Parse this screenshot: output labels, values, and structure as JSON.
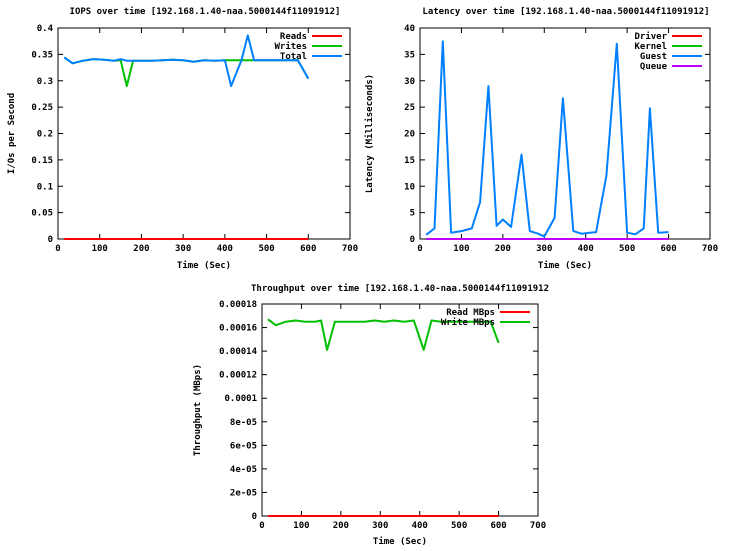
{
  "chart_data": [
    {
      "type": "line",
      "title": "IOPS over time [192.168.1.40-naa.5000144f11091912]",
      "xlabel": "Time (Sec)",
      "ylabel": "I/Os per Second",
      "xlim": [
        0,
        700
      ],
      "ylim": [
        0,
        0.4
      ],
      "xticks": [
        0,
        100,
        200,
        300,
        400,
        500,
        600,
        700
      ],
      "xtick_labels": [
        "0",
        "100",
        "200",
        "300",
        "400",
        "500",
        "600",
        "700"
      ],
      "yticks": [
        0,
        0.05,
        0.1,
        0.15,
        0.2,
        0.25,
        0.3,
        0.35,
        0.4
      ],
      "ytick_labels": [
        "0",
        "0.05",
        "0.1",
        "0.15",
        "0.2",
        "0.25",
        "0.3",
        "0.35",
        "0.4"
      ],
      "legend_position": "top-right",
      "grid": false,
      "series": [
        {
          "name": "Reads",
          "color": "#ff0000",
          "x": [
            15,
            600
          ],
          "y": [
            0,
            0
          ]
        },
        {
          "name": "Writes",
          "color": "#00c000",
          "x": [
            15,
            35,
            60,
            85,
            110,
            135,
            150,
            165,
            180,
            200,
            225,
            250,
            275,
            300,
            325,
            350,
            375,
            400,
            415,
            440,
            455,
            470,
            500,
            525,
            550,
            575,
            600
          ],
          "y": [
            0.344,
            0.333,
            0.338,
            0.341,
            0.34,
            0.338,
            0.339,
            0.29,
            0.338,
            0.338,
            0.338,
            0.339,
            0.34,
            0.339,
            0.336,
            0.339,
            0.338,
            0.339,
            0.339,
            0.339,
            0.339,
            0.339,
            0.339,
            0.339,
            0.339,
            0.339,
            0.304
          ]
        },
        {
          "name": "Total",
          "color": "#0080ff",
          "x": [
            15,
            35,
            60,
            85,
            110,
            135,
            150,
            165,
            180,
            200,
            225,
            250,
            275,
            300,
            325,
            350,
            375,
            400,
            415,
            440,
            455,
            470,
            500,
            525,
            550,
            575,
            600
          ],
          "y": [
            0.344,
            0.333,
            0.338,
            0.341,
            0.34,
            0.338,
            0.341,
            0.338,
            0.338,
            0.338,
            0.338,
            0.339,
            0.34,
            0.339,
            0.336,
            0.339,
            0.338,
            0.339,
            0.29,
            0.339,
            0.386,
            0.339,
            0.339,
            0.339,
            0.339,
            0.339,
            0.304
          ]
        }
      ]
    },
    {
      "type": "line",
      "title": "Latency over time [192.168.1.40-naa.5000144f11091912]",
      "xlabel": "Time (Sec)",
      "ylabel": "Latency (Milliseconds)",
      "xlim": [
        0,
        700
      ],
      "ylim": [
        0,
        40
      ],
      "xticks": [
        0,
        100,
        200,
        300,
        400,
        500,
        600,
        700
      ],
      "xtick_labels": [
        "0",
        "100",
        "200",
        "300",
        "400",
        "500",
        "600",
        "700"
      ],
      "yticks": [
        0,
        5,
        10,
        15,
        20,
        25,
        30,
        35,
        40
      ],
      "ytick_labels": [
        "0",
        "5",
        "10",
        "15",
        "20",
        "25",
        "30",
        "35",
        "40"
      ],
      "legend_position": "top-right",
      "grid": false,
      "series": [
        {
          "name": "Driver",
          "color": "#ff0000",
          "x": [
            15,
            600
          ],
          "y": [
            0,
            0
          ]
        },
        {
          "name": "Kernel",
          "color": "#00c000",
          "x": [
            15,
            600
          ],
          "y": [
            0,
            0
          ]
        },
        {
          "name": "Guest",
          "color": "#0080ff",
          "x": [
            15,
            35,
            55,
            75,
            100,
            125,
            145,
            165,
            185,
            200,
            220,
            245,
            265,
            285,
            300,
            325,
            345,
            370,
            390,
            410,
            425,
            450,
            475,
            500,
            520,
            540,
            555,
            575,
            600
          ],
          "y": [
            0.8,
            2.0,
            37.5,
            1.2,
            1.5,
            2.0,
            7.0,
            29.0,
            2.5,
            3.7,
            2.3,
            16.0,
            1.5,
            1.0,
            0.5,
            4.0,
            26.7,
            1.5,
            1.0,
            1.2,
            1.3,
            12.0,
            37.0,
            1.2,
            0.9,
            2.0,
            24.8,
            1.2,
            1.3
          ]
        },
        {
          "name": "Queue",
          "color": "#c000ff",
          "x": [
            15,
            600
          ],
          "y": [
            0,
            0
          ]
        }
      ]
    },
    {
      "type": "line",
      "title": "Throughput over time [192.168.1.40-naa.5000144f11091912",
      "xlabel": "Time (Sec)",
      "ylabel": "Throughput (MBps)",
      "xlim": [
        0,
        700
      ],
      "ylim": [
        0,
        0.00018
      ],
      "xticks": [
        0,
        100,
        200,
        300,
        400,
        500,
        600,
        700
      ],
      "xtick_labels": [
        "0",
        "100",
        "200",
        "300",
        "400",
        "500",
        "600",
        "700"
      ],
      "yticks": [
        0,
        2e-05,
        4e-05,
        6e-05,
        8e-05,
        0.0001,
        0.00012,
        0.00014,
        0.00016,
        0.00018
      ],
      "ytick_labels": [
        "0",
        "2e-05",
        "4e-05",
        "6e-05",
        "8e-05",
        "0.0001",
        "0.00012",
        "0.00014",
        "0.00016",
        "0.00018"
      ],
      "legend_position": "top-right",
      "grid": false,
      "series": [
        {
          "name": "Read MBps",
          "color": "#ff0000",
          "x": [
            15,
            600
          ],
          "y": [
            0,
            0
          ]
        },
        {
          "name": "Write MBps",
          "color": "#00c000",
          "x": [
            15,
            35,
            60,
            85,
            110,
            135,
            150,
            165,
            185,
            210,
            235,
            260,
            285,
            310,
            335,
            360,
            385,
            410,
            430,
            455,
            480,
            505,
            530,
            555,
            580,
            600
          ],
          "y": [
            0.000167,
            0.000162,
            0.000165,
            0.000166,
            0.000165,
            0.000165,
            0.000166,
            0.000141,
            0.000165,
            0.000165,
            0.000165,
            0.000165,
            0.000166,
            0.000165,
            0.000166,
            0.000165,
            0.000166,
            0.000141,
            0.000166,
            0.000165,
            0.000165,
            0.000165,
            0.000165,
            0.000165,
            0.000165,
            0.000147
          ]
        }
      ]
    }
  ]
}
